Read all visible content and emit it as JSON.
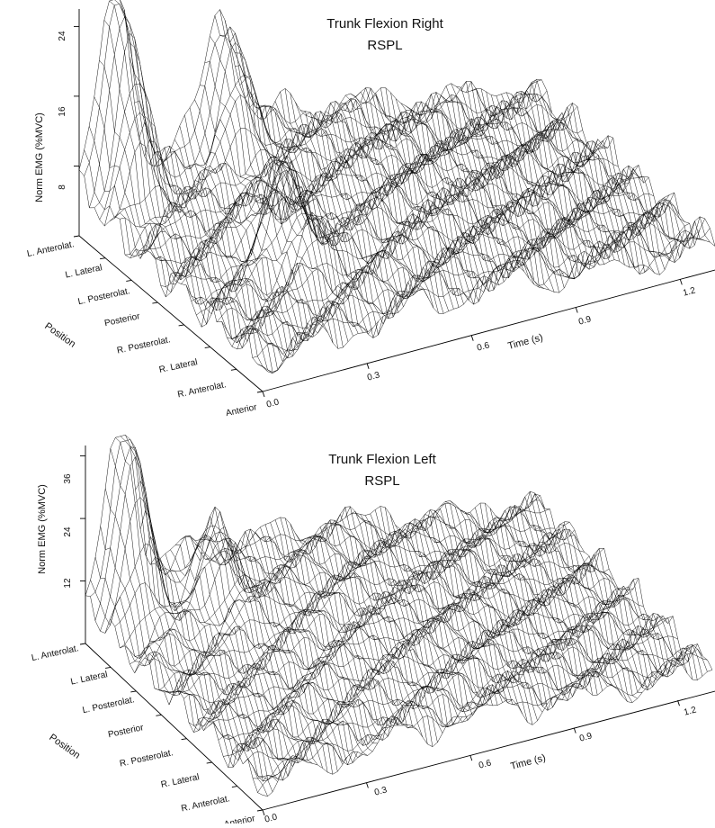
{
  "chart_data": [
    {
      "type": "surface-3d",
      "title": "Trunk Flexion Right",
      "subtitle": "RSPL",
      "zlabel": "Norm EMG (%MVC)",
      "xlabel": "Time (s)",
      "ylabel": "Position",
      "z_ticks": [
        "8",
        "16",
        "24"
      ],
      "time_ticks": [
        "0.0",
        "0.3",
        "0.6",
        "0.9",
        "1.2"
      ],
      "positions": [
        "L. Anterolat.",
        "L. Lateral",
        "L. Posterolat.",
        "Posterior",
        "R. Posterolat.",
        "R. Lateral",
        "R. Anterolat.",
        "Anterior"
      ],
      "zlim": [
        0,
        26
      ],
      "time_range": [
        0,
        1.3
      ],
      "peaks": [
        {
          "time": 0.1,
          "position": "L. Anterolat.",
          "value": 25
        },
        {
          "time": 0.4,
          "position": "L. Anterolat.",
          "value": 15
        },
        {
          "time": 0.3,
          "position": "R. Posterolat.",
          "value": 9
        }
      ]
    },
    {
      "type": "surface-3d",
      "title": "Trunk Flexion Left",
      "subtitle": "RSPL",
      "zlabel": "Norm EMG (%MVC)",
      "xlabel": "Time (s)",
      "ylabel": "Position",
      "z_ticks": [
        "12",
        "24",
        "36"
      ],
      "time_ticks": [
        "0.0",
        "0.3",
        "0.6",
        "0.9",
        "1.2"
      ],
      "positions": [
        "L. Anterolat.",
        "L. Lateral",
        "L. Posterolat.",
        "Posterior",
        "R. Posterolat.",
        "R. Lateral",
        "R. Anterolat.",
        "Anterior"
      ],
      "zlim": [
        0,
        38
      ],
      "time_range": [
        0,
        1.3
      ],
      "peaks": [
        {
          "time": 0.1,
          "position": "L. Anterolat.",
          "value": 38
        },
        {
          "time": 0.3,
          "position": "L. Lateral",
          "value": 12
        }
      ]
    }
  ]
}
